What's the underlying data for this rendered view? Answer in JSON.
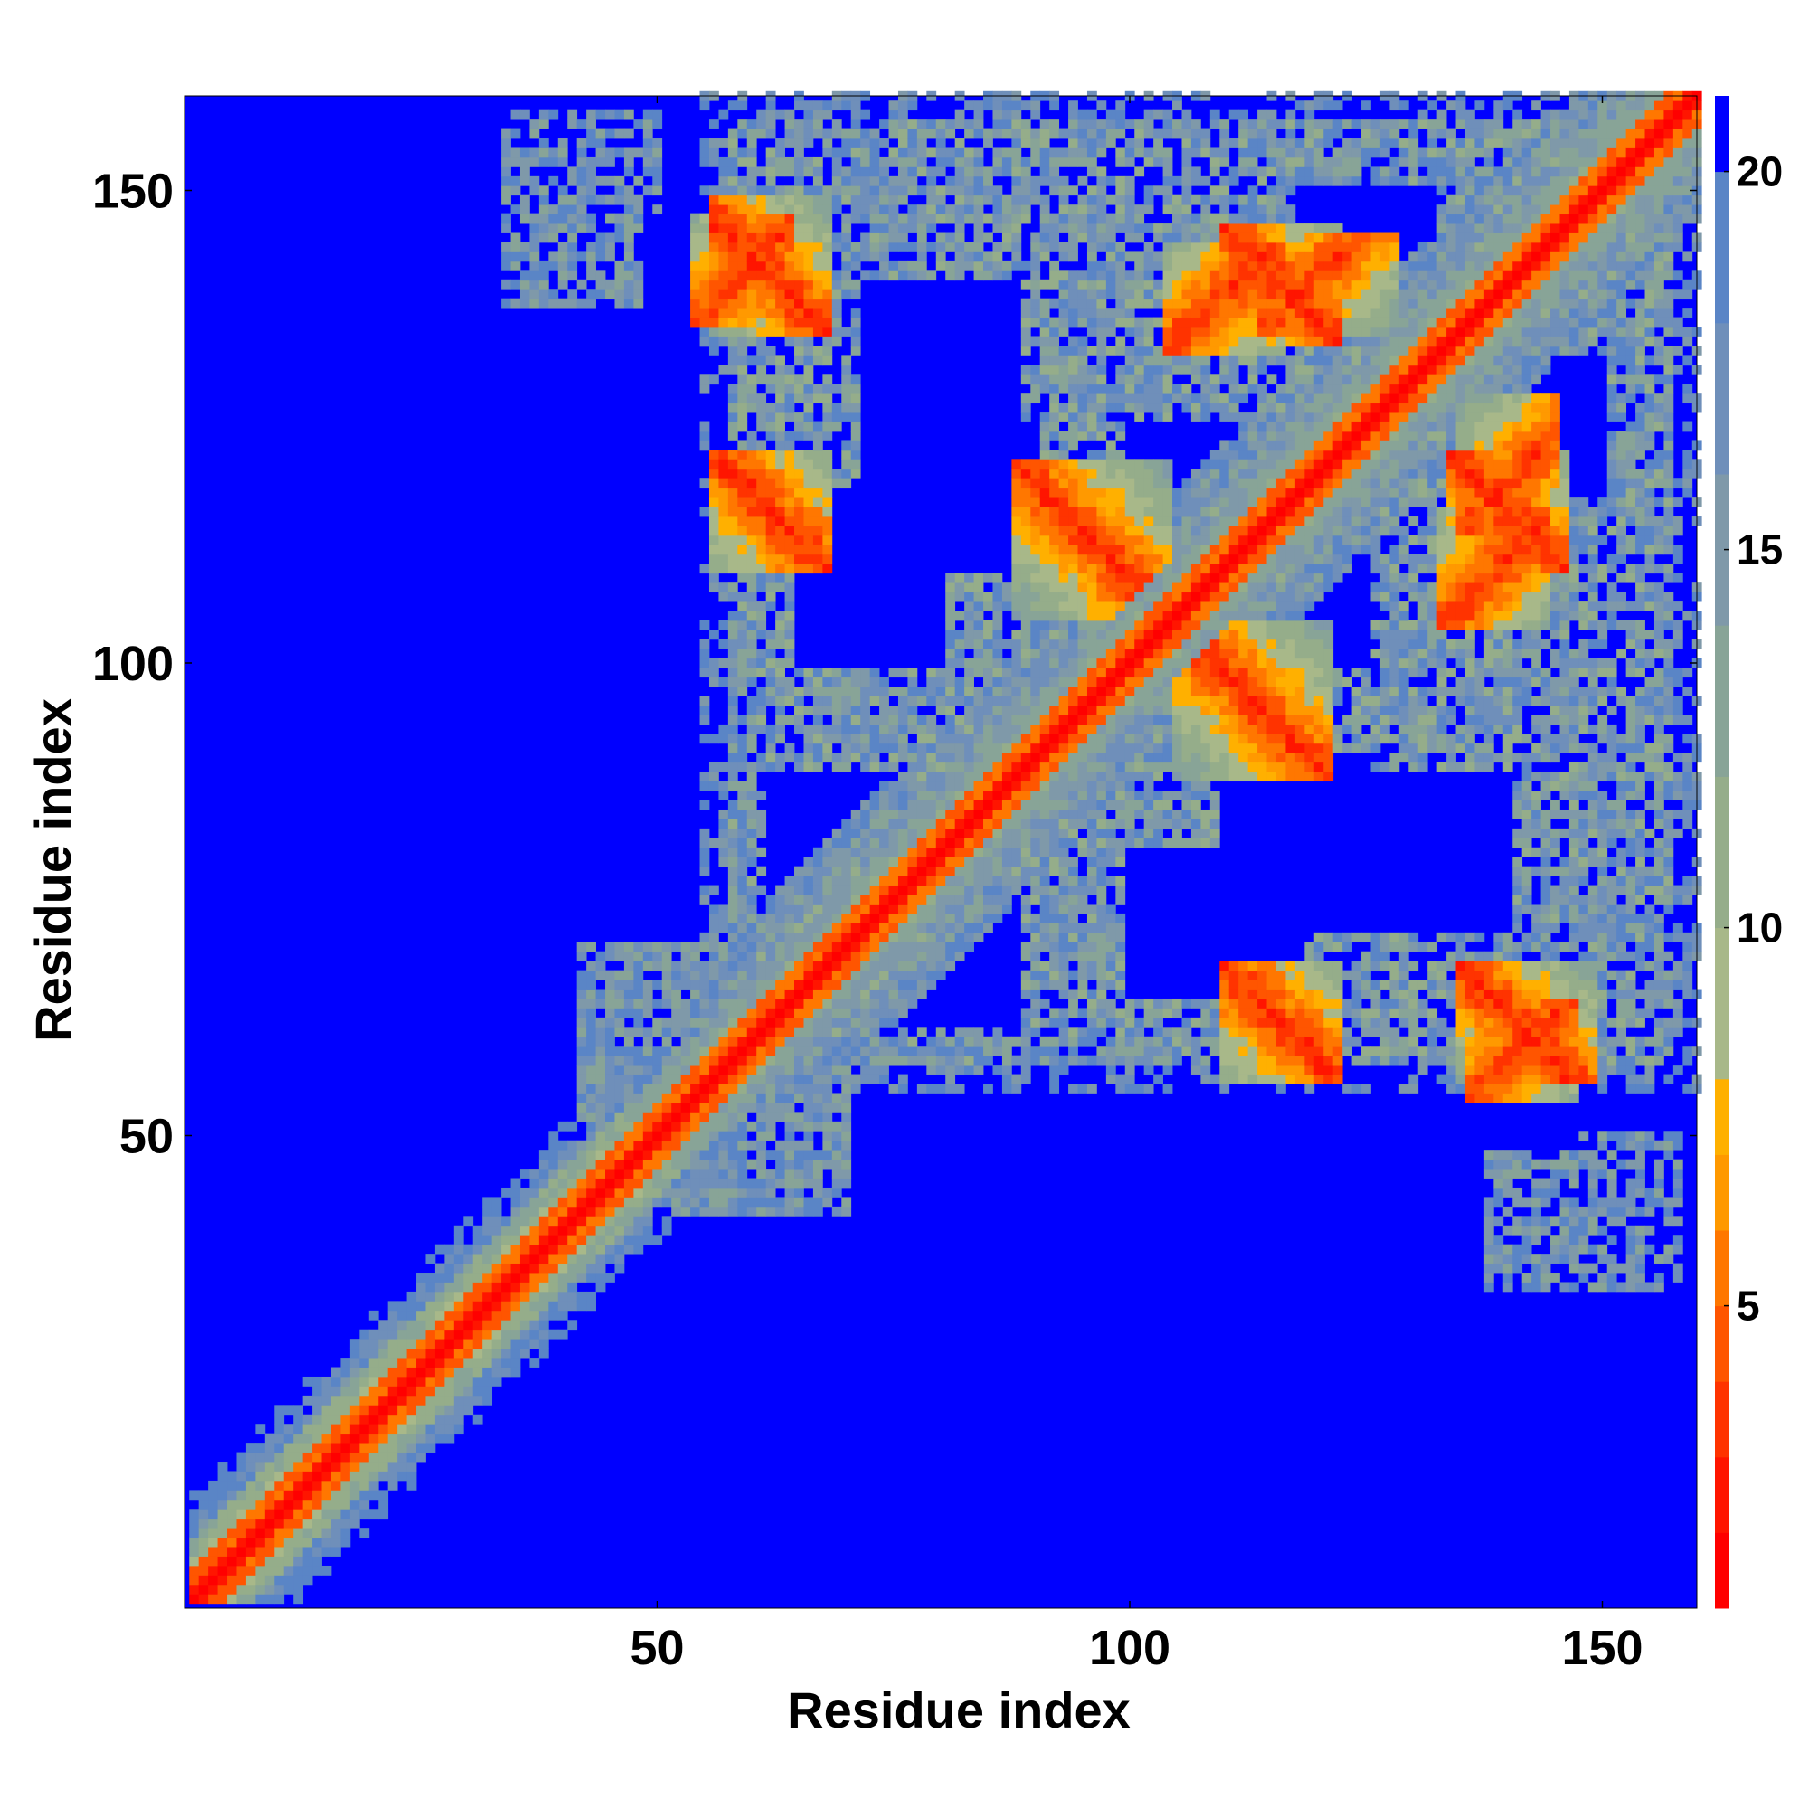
{
  "chart_data": {
    "type": "heatmap",
    "title": "",
    "xlabel": "Residue index",
    "ylabel": "Residue index",
    "n_residues": 160,
    "xlim": [
      1,
      160
    ],
    "ylim": [
      1,
      160
    ],
    "x_ticks": [
      50,
      100,
      150
    ],
    "y_ticks": [
      50,
      100,
      150
    ],
    "symmetric": true,
    "grid": false,
    "colorbar": {
      "placement": "right",
      "ticks": [
        5,
        10,
        15,
        20
      ],
      "range": [
        1,
        21
      ],
      "levels": [
        {
          "max": 2,
          "color": "#ff0000"
        },
        {
          "max": 3,
          "color": "#ff1500"
        },
        {
          "max": 4,
          "color": "#ff3300"
        },
        {
          "max": 5,
          "color": "#ff5500"
        },
        {
          "max": 6,
          "color": "#ff7700"
        },
        {
          "max": 7,
          "color": "#ff9900"
        },
        {
          "max": 8,
          "color": "#ffb000"
        },
        {
          "max": 10,
          "color": "#a8b889"
        },
        {
          "max": 12,
          "color": "#95ad8a"
        },
        {
          "max": 14,
          "color": "#88a497"
        },
        {
          "max": 16,
          "color": "#7f99a9"
        },
        {
          "max": 18,
          "color": "#6f8fba"
        },
        {
          "max": 20,
          "color": "#5a85c6"
        },
        {
          "max": 21,
          "color": "#0000ff"
        }
      ]
    },
    "contact_features": [
      {
        "kind": "diagonal_band",
        "from": 1,
        "to": 160
      },
      {
        "kind": "parallel_pair",
        "i_range": [
          1,
          45
        ],
        "offset": 4
      },
      {
        "kind": "antiparallel_pair",
        "i_range": [
          58,
          66
        ],
        "j_range": [
          112,
          120
        ]
      },
      {
        "kind": "antiparallel_pair",
        "i_range": [
          90,
          102
        ],
        "j_range": [
          107,
          119
        ]
      },
      {
        "kind": "antiparallel_pair",
        "i_range": [
          58,
          66
        ],
        "j_range": [
          137,
          147
        ]
      },
      {
        "kind": "antiparallel_pair",
        "i_range": [
          112,
          120
        ],
        "j_range": [
          136,
          144
        ]
      },
      {
        "kind": "parallel_pair",
        "i_range": [
          56,
          62
        ],
        "j_range": [
          138,
          145
        ]
      },
      {
        "kind": "parallel_pair",
        "i_range": [
          106,
          114
        ],
        "j_range": [
          135,
          142
        ]
      },
      {
        "kind": "parallel_pair",
        "i_range": [
          116,
          126
        ],
        "j_range": [
          137,
          143
        ]
      },
      {
        "kind": "domain_block",
        "i_range": [
          55,
          160
        ],
        "j_range": [
          55,
          160
        ]
      },
      {
        "kind": "domain_block",
        "i_range": [
          1,
          55
        ],
        "j_range": [
          1,
          55
        ]
      }
    ]
  }
}
